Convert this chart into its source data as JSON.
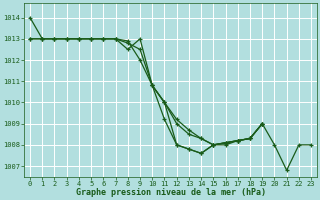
{
  "background_color": "#b2dfdf",
  "grid_color": "#ffffff",
  "line_color": "#1a5c1a",
  "xlabel": "Graphe pression niveau de la mer (hPa)",
  "ylim": [
    1006.5,
    1014.7
  ],
  "xlim": [
    -0.5,
    23.5
  ],
  "yticks": [
    1007,
    1008,
    1009,
    1010,
    1011,
    1012,
    1013,
    1014
  ],
  "xticks": [
    0,
    1,
    2,
    3,
    4,
    5,
    6,
    7,
    8,
    9,
    10,
    11,
    12,
    13,
    14,
    15,
    16,
    17,
    18,
    19,
    20,
    21,
    22,
    23
  ],
  "lines": [
    {
      "x": [
        0,
        1,
        2,
        3,
        4,
        5,
        6,
        7,
        8,
        9,
        10,
        11,
        12,
        13,
        14,
        15,
        16,
        17,
        18,
        19
      ],
      "y": [
        1014.0,
        1013.0,
        1013.0,
        1013.0,
        1013.0,
        1013.0,
        1013.0,
        1013.0,
        1012.5,
        1013.0,
        1010.8,
        1009.2,
        1008.0,
        1007.8,
        1007.6,
        1008.0,
        1008.1,
        1008.2,
        1008.3,
        1009.0
      ]
    },
    {
      "x": [
        0,
        1,
        2,
        3,
        4,
        5,
        6,
        7,
        8,
        9,
        10,
        11,
        12,
        13,
        14,
        15,
        16,
        17,
        18,
        19
      ],
      "y": [
        1013.0,
        1013.0,
        1013.0,
        1013.0,
        1013.0,
        1013.0,
        1013.0,
        1013.0,
        1012.8,
        1012.5,
        1010.8,
        1010.0,
        1009.0,
        1008.5,
        1008.3,
        1008.0,
        1008.1,
        1008.2,
        1008.3,
        1009.0
      ]
    },
    {
      "x": [
        0,
        1,
        2,
        3,
        4,
        5,
        6,
        7,
        8,
        9,
        10,
        11,
        12,
        13,
        14,
        15,
        16,
        17,
        18,
        19
      ],
      "y": [
        1013.0,
        1013.0,
        1013.0,
        1013.0,
        1013.0,
        1013.0,
        1013.0,
        1013.0,
        1012.9,
        1012.0,
        1010.8,
        1010.0,
        1009.2,
        1008.7,
        1008.3,
        1008.0,
        1008.1,
        1008.2,
        1008.3,
        1009.0
      ]
    },
    {
      "x": [
        10,
        11,
        12,
        13,
        14,
        15,
        16,
        17,
        18,
        19,
        20,
        21,
        22,
        23
      ],
      "y": [
        1010.8,
        1010.0,
        1008.0,
        1007.8,
        1007.6,
        1008.0,
        1008.0,
        1008.2,
        1008.3,
        1009.0,
        1008.0,
        1006.8,
        1008.0,
        1008.0
      ]
    }
  ]
}
